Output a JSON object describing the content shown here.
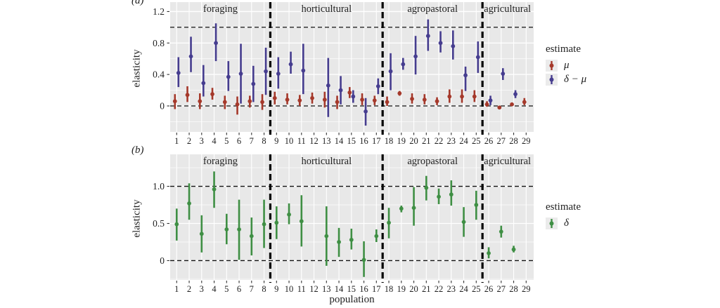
{
  "figure": {
    "panel_a_tag": "(a)",
    "panel_b_tag": "(b)",
    "panel_bg": "#e8e8e8",
    "gridline_color": "#ffffff",
    "reference_line_color": "#111111",
    "separator_color": "#000000",
    "text_color": "#1f1f1f"
  },
  "chart_data": [
    {
      "id": "a",
      "type": "scatter",
      "title": "",
      "xlabel": "",
      "ylabel": "elasticity",
      "ylim": [
        -0.33,
        1.32
      ],
      "yticks": [
        0,
        0.4,
        0.8,
        1.2
      ],
      "ytick_labels": [
        "0",
        "0.4",
        "0.8",
        "1.2"
      ],
      "yticks_minor": [
        -0.2,
        0.2,
        0.6,
        1.0
      ],
      "reference_lines": [
        0,
        1.0
      ],
      "grid": true,
      "x": [
        1,
        2,
        3,
        4,
        5,
        6,
        7,
        8,
        9,
        10,
        11,
        12,
        13,
        14,
        15,
        16,
        17,
        18,
        19,
        20,
        21,
        22,
        23,
        24,
        25,
        26,
        27,
        28,
        29
      ],
      "facets": [
        {
          "label": "foraging",
          "from": 1,
          "to": 8
        },
        {
          "label": "horticultural",
          "from": 9,
          "to": 17
        },
        {
          "label": "agropastoral",
          "from": 18,
          "to": 25
        },
        {
          "label": "agricultural",
          "from": 26,
          "to": 29
        }
      ],
      "series": [
        {
          "name": "μ",
          "color": "#a5392b",
          "offset": -2.5,
          "values": [
            0.06,
            0.14,
            0.06,
            0.15,
            0.05,
            0.02,
            0.06,
            0.05,
            0.1,
            0.08,
            0.07,
            0.1,
            0.08,
            0.05,
            0.17,
            0.08,
            0.07,
            0.05,
            0.16,
            0.09,
            0.08,
            0.06,
            0.12,
            0.12,
            0.12,
            0.02,
            -0.02,
            0.02,
            0.05
          ],
          "lower": [
            -0.04,
            0.05,
            -0.04,
            0.08,
            -0.04,
            -0.11,
            -0.02,
            -0.05,
            0.02,
            0.02,
            0.0,
            0.03,
            -0.02,
            -0.04,
            0.1,
            0.01,
            0.01,
            0.0,
            0.13,
            0.03,
            0.02,
            0.01,
            0.04,
            0.04,
            0.05,
            -0.01,
            -0.03,
            0.0,
            0.01
          ],
          "upper": [
            0.15,
            0.25,
            0.16,
            0.23,
            0.13,
            0.12,
            0.13,
            0.15,
            0.18,
            0.16,
            0.14,
            0.17,
            0.18,
            0.13,
            0.24,
            0.16,
            0.13,
            0.12,
            0.19,
            0.16,
            0.15,
            0.11,
            0.21,
            0.21,
            0.2,
            0.06,
            0.0,
            0.04,
            0.1
          ]
        },
        {
          "name": "δ − μ",
          "color": "#463d8f",
          "offset": 2.5,
          "values": [
            0.42,
            0.63,
            0.29,
            0.8,
            0.37,
            0.41,
            0.28,
            0.44,
            0.41,
            0.53,
            0.45,
            null,
            0.26,
            0.2,
            0.12,
            -0.07,
            0.25,
            0.44,
            0.53,
            0.63,
            0.89,
            0.8,
            0.76,
            0.39,
            0.62,
            0.07,
            0.41,
            0.15,
            null
          ],
          "lower": [
            0.24,
            0.43,
            0.12,
            0.57,
            0.19,
            0.03,
            0.05,
            0.14,
            0.22,
            0.41,
            0.15,
            null,
            -0.14,
            0.02,
            0.04,
            -0.25,
            0.15,
            0.2,
            0.46,
            0.4,
            0.7,
            0.68,
            0.59,
            0.19,
            0.42,
            0.01,
            0.33,
            0.1,
            null
          ],
          "upper": [
            0.62,
            0.88,
            0.52,
            1.05,
            0.57,
            0.79,
            0.51,
            0.74,
            0.62,
            0.69,
            0.79,
            null,
            0.61,
            0.38,
            0.2,
            0.1,
            0.35,
            0.67,
            0.61,
            0.89,
            1.1,
            0.95,
            0.96,
            0.5,
            0.82,
            0.13,
            0.48,
            0.2,
            null
          ]
        }
      ],
      "legend": {
        "title": "estimate",
        "items": [
          {
            "label": "μ"
          },
          {
            "label": "δ − μ"
          }
        ]
      }
    },
    {
      "id": "b",
      "type": "scatter",
      "title": "",
      "xlabel": "population",
      "ylabel": "elasticity",
      "ylim": [
        -0.26,
        1.43
      ],
      "yticks": [
        0,
        0.5,
        1.0
      ],
      "ytick_labels": [
        "0",
        "0.5",
        "1.0"
      ],
      "yticks_minor": [
        -0.25,
        0.25,
        0.75,
        1.25
      ],
      "reference_lines": [
        0,
        1.0
      ],
      "grid": true,
      "x": [
        1,
        2,
        3,
        4,
        5,
        6,
        7,
        8,
        9,
        10,
        11,
        12,
        13,
        14,
        15,
        16,
        17,
        18,
        19,
        20,
        21,
        22,
        23,
        24,
        25,
        26,
        27,
        28,
        29
      ],
      "facets": [
        {
          "label": "foraging",
          "from": 1,
          "to": 8
        },
        {
          "label": "horticultural",
          "from": 9,
          "to": 17
        },
        {
          "label": "agropastoral",
          "from": 18,
          "to": 25
        },
        {
          "label": "agricultural",
          "from": 26,
          "to": 29
        }
      ],
      "series": [
        {
          "name": "δ",
          "color": "#3f8f44",
          "offset": 0,
          "values": [
            0.49,
            0.77,
            0.36,
            0.96,
            0.42,
            0.42,
            0.33,
            0.49,
            0.51,
            0.62,
            0.53,
            null,
            0.33,
            0.25,
            0.28,
            0.01,
            0.33,
            0.51,
            0.7,
            0.71,
            0.98,
            0.86,
            0.89,
            0.52,
            0.75,
            0.1,
            0.39,
            0.15,
            null
          ],
          "lower": [
            0.27,
            0.55,
            0.11,
            0.71,
            0.22,
            0.01,
            0.07,
            0.17,
            0.29,
            0.49,
            0.19,
            null,
            -0.07,
            0.05,
            0.15,
            -0.22,
            0.25,
            0.3,
            0.65,
            0.47,
            0.81,
            0.76,
            0.74,
            0.32,
            0.55,
            0.03,
            0.31,
            0.11,
            null
          ],
          "upper": [
            0.7,
            1.04,
            0.61,
            1.2,
            0.63,
            0.82,
            0.58,
            0.82,
            0.73,
            0.77,
            0.88,
            null,
            0.73,
            0.44,
            0.43,
            0.26,
            0.42,
            0.71,
            0.74,
            0.99,
            1.14,
            0.97,
            1.08,
            0.72,
            0.94,
            0.18,
            0.47,
            0.2,
            null
          ]
        }
      ],
      "legend": {
        "title": "estimate",
        "items": [
          {
            "label": "δ"
          }
        ]
      }
    }
  ]
}
